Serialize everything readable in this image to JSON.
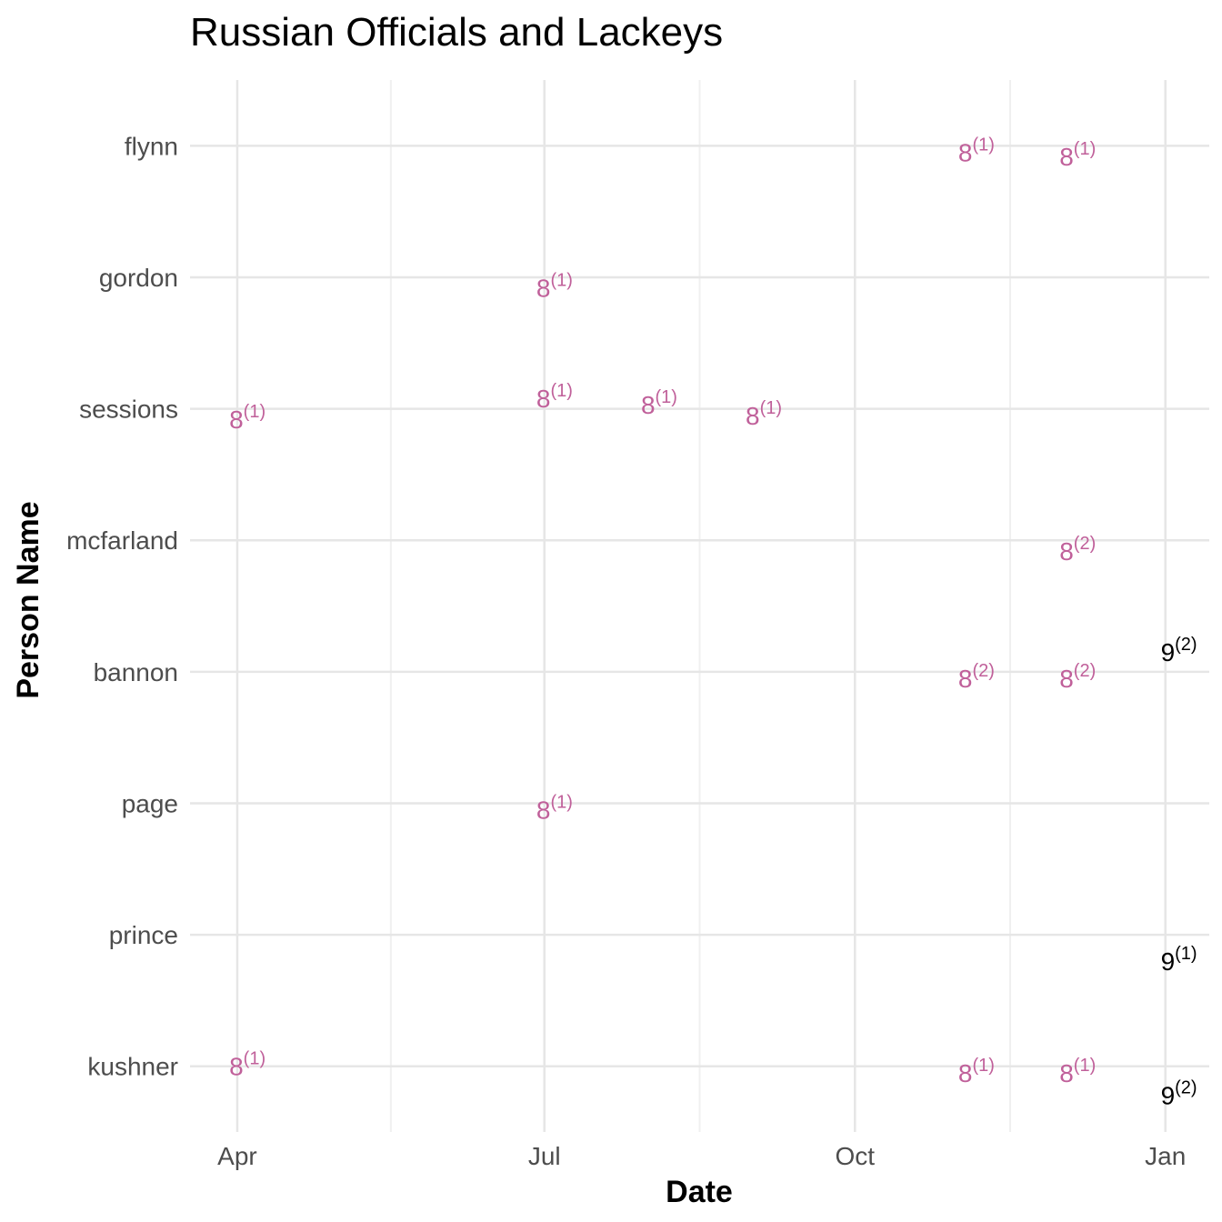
{
  "chart_data": {
    "type": "scatter",
    "title": "Russian Officials and Lackeys",
    "xlabel": "Date",
    "ylabel": "Person Name",
    "x_ticks": [
      {
        "label": "Apr",
        "date": "2017-04-01"
      },
      {
        "label": "Jul",
        "date": "2017-07-01"
      },
      {
        "label": "Oct",
        "date": "2017-10-01"
      },
      {
        "label": "Jan",
        "date": "2018-01-01"
      }
    ],
    "xlim": [
      "2017-03-18",
      "2018-01-14"
    ],
    "categories": [
      "flynn",
      "gordon",
      "sessions",
      "mcfarland",
      "bannon",
      "page",
      "prince",
      "kushner"
    ],
    "grid": true,
    "colors": {
      "label_8": "#c0609a",
      "label_9": "#000000",
      "grid_major": "#e6e6e6",
      "grid_minor": "#f0f0f0"
    },
    "points": [
      {
        "person": "flynn",
        "date": "2017-11-06",
        "base": "8",
        "sup": "(1)",
        "color": "#c0609a",
        "offset": -0.05
      },
      {
        "person": "flynn",
        "date": "2017-12-06",
        "base": "8",
        "sup": "(1)",
        "color": "#c0609a",
        "offset": -0.08
      },
      {
        "person": "gordon",
        "date": "2017-07-04",
        "base": "8",
        "sup": "(1)",
        "color": "#c0609a",
        "offset": -0.08
      },
      {
        "person": "sessions",
        "date": "2017-04-04",
        "base": "8",
        "sup": "(1)",
        "color": "#c0609a",
        "offset": -0.08
      },
      {
        "person": "sessions",
        "date": "2017-07-04",
        "base": "8",
        "sup": "(1)",
        "color": "#c0609a",
        "offset": 0.08
      },
      {
        "person": "sessions",
        "date": "2017-08-04",
        "base": "8",
        "sup": "(1)",
        "color": "#c0609a",
        "offset": 0.03
      },
      {
        "person": "sessions",
        "date": "2017-09-04",
        "base": "8",
        "sup": "(1)",
        "color": "#c0609a",
        "offset": -0.05
      },
      {
        "person": "mcfarland",
        "date": "2017-12-06",
        "base": "8",
        "sup": "(2)",
        "color": "#c0609a",
        "offset": -0.08
      },
      {
        "person": "bannon",
        "date": "2017-11-06",
        "base": "8",
        "sup": "(2)",
        "color": "#c0609a",
        "offset": -0.05
      },
      {
        "person": "bannon",
        "date": "2017-12-06",
        "base": "8",
        "sup": "(2)",
        "color": "#c0609a",
        "offset": -0.05
      },
      {
        "person": "bannon",
        "date": "2018-01-05",
        "base": "9",
        "sup": "(2)",
        "color": "#000000",
        "offset": 0.15
      },
      {
        "person": "page",
        "date": "2017-07-04",
        "base": "8",
        "sup": "(1)",
        "color": "#c0609a",
        "offset": -0.05
      },
      {
        "person": "prince",
        "date": "2018-01-05",
        "base": "9",
        "sup": "(1)",
        "color": "#000000",
        "offset": -0.2
      },
      {
        "person": "kushner",
        "date": "2017-04-04",
        "base": "8",
        "sup": "(1)",
        "color": "#c0609a",
        "offset": 0.0
      },
      {
        "person": "kushner",
        "date": "2017-11-06",
        "base": "8",
        "sup": "(1)",
        "color": "#c0609a",
        "offset": -0.05
      },
      {
        "person": "kushner",
        "date": "2017-12-06",
        "base": "8",
        "sup": "(1)",
        "color": "#c0609a",
        "offset": -0.05
      },
      {
        "person": "kushner",
        "date": "2018-01-05",
        "base": "9",
        "sup": "(2)",
        "color": "#000000",
        "offset": -0.22
      }
    ]
  }
}
